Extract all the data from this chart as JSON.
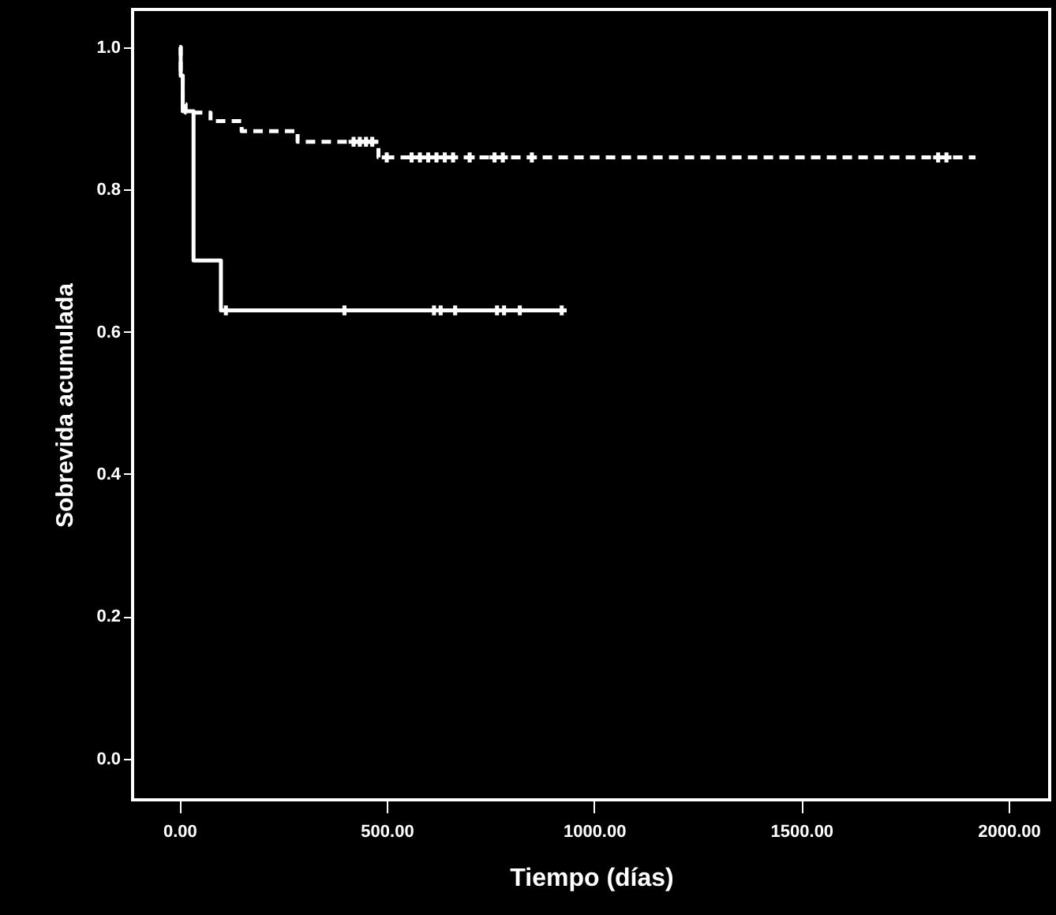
{
  "chart_data": {
    "type": "step",
    "xlabel": "Tiempo (días)",
    "ylabel": "Sobrevida acumulada",
    "xlim": [
      -113,
      2099
    ],
    "ylim": [
      -0.058,
      1.053
    ],
    "xticks": [
      {
        "value": 0,
        "label": "0.00"
      },
      {
        "value": 500,
        "label": "500.00"
      },
      {
        "value": 1000,
        "label": "1000.00"
      },
      {
        "value": 1500,
        "label": "1500.00"
      },
      {
        "value": 2000,
        "label": "2000.00"
      }
    ],
    "yticks": [
      {
        "value": 0,
        "label": "0.0"
      },
      {
        "value": 0.2,
        "label": "0.2"
      },
      {
        "value": 0.4,
        "label": "0.4"
      },
      {
        "value": 0.6,
        "label": "0.6"
      },
      {
        "value": 0.8,
        "label": "0.8"
      },
      {
        "value": 1,
        "label": "1.0"
      }
    ],
    "grid": false,
    "marker": "none",
    "series": [
      {
        "color": "#ffffff",
        "line_style": "solid",
        "x": [
          0,
          3,
          8,
          34,
          100,
          930
        ],
        "values": [
          1.0,
          0.96,
          0.91,
          0.7,
          0.63,
          0.63
        ]
      },
      {
        "color": "#ffffff",
        "line_style": "dashed",
        "x": [
          0,
          3,
          8,
          15,
          75,
          150,
          285,
          480,
          1920
        ],
        "values": [
          1.0,
          0.96,
          0.92,
          0.908,
          0.896,
          0.882,
          0.867,
          0.845,
          0.845
        ]
      },
      {
        "type": "scatter",
        "color": "#ffffff",
        "marker": "cross",
        "x": [
          112,
          398,
          614,
          630,
          665,
          766,
          783,
          821,
          922
        ],
        "values": [
          0.63,
          0.63,
          0.63,
          0.63,
          0.63,
          0.63,
          0.63,
          0.63,
          0.63
        ]
      },
      {
        "type": "scatter",
        "color": "#ffffff",
        "marker": "cross",
        "x": [
          420,
          435,
          450,
          465,
          500,
          560,
          580,
          600,
          620,
          640,
          660,
          700,
          760,
          780,
          850,
          1830,
          1850
        ],
        "values": [
          0.867,
          0.867,
          0.867,
          0.867,
          0.845,
          0.845,
          0.845,
          0.845,
          0.845,
          0.845,
          0.845,
          0.845,
          0.845,
          0.845,
          0.845,
          0.845,
          0.845
        ]
      }
    ]
  }
}
